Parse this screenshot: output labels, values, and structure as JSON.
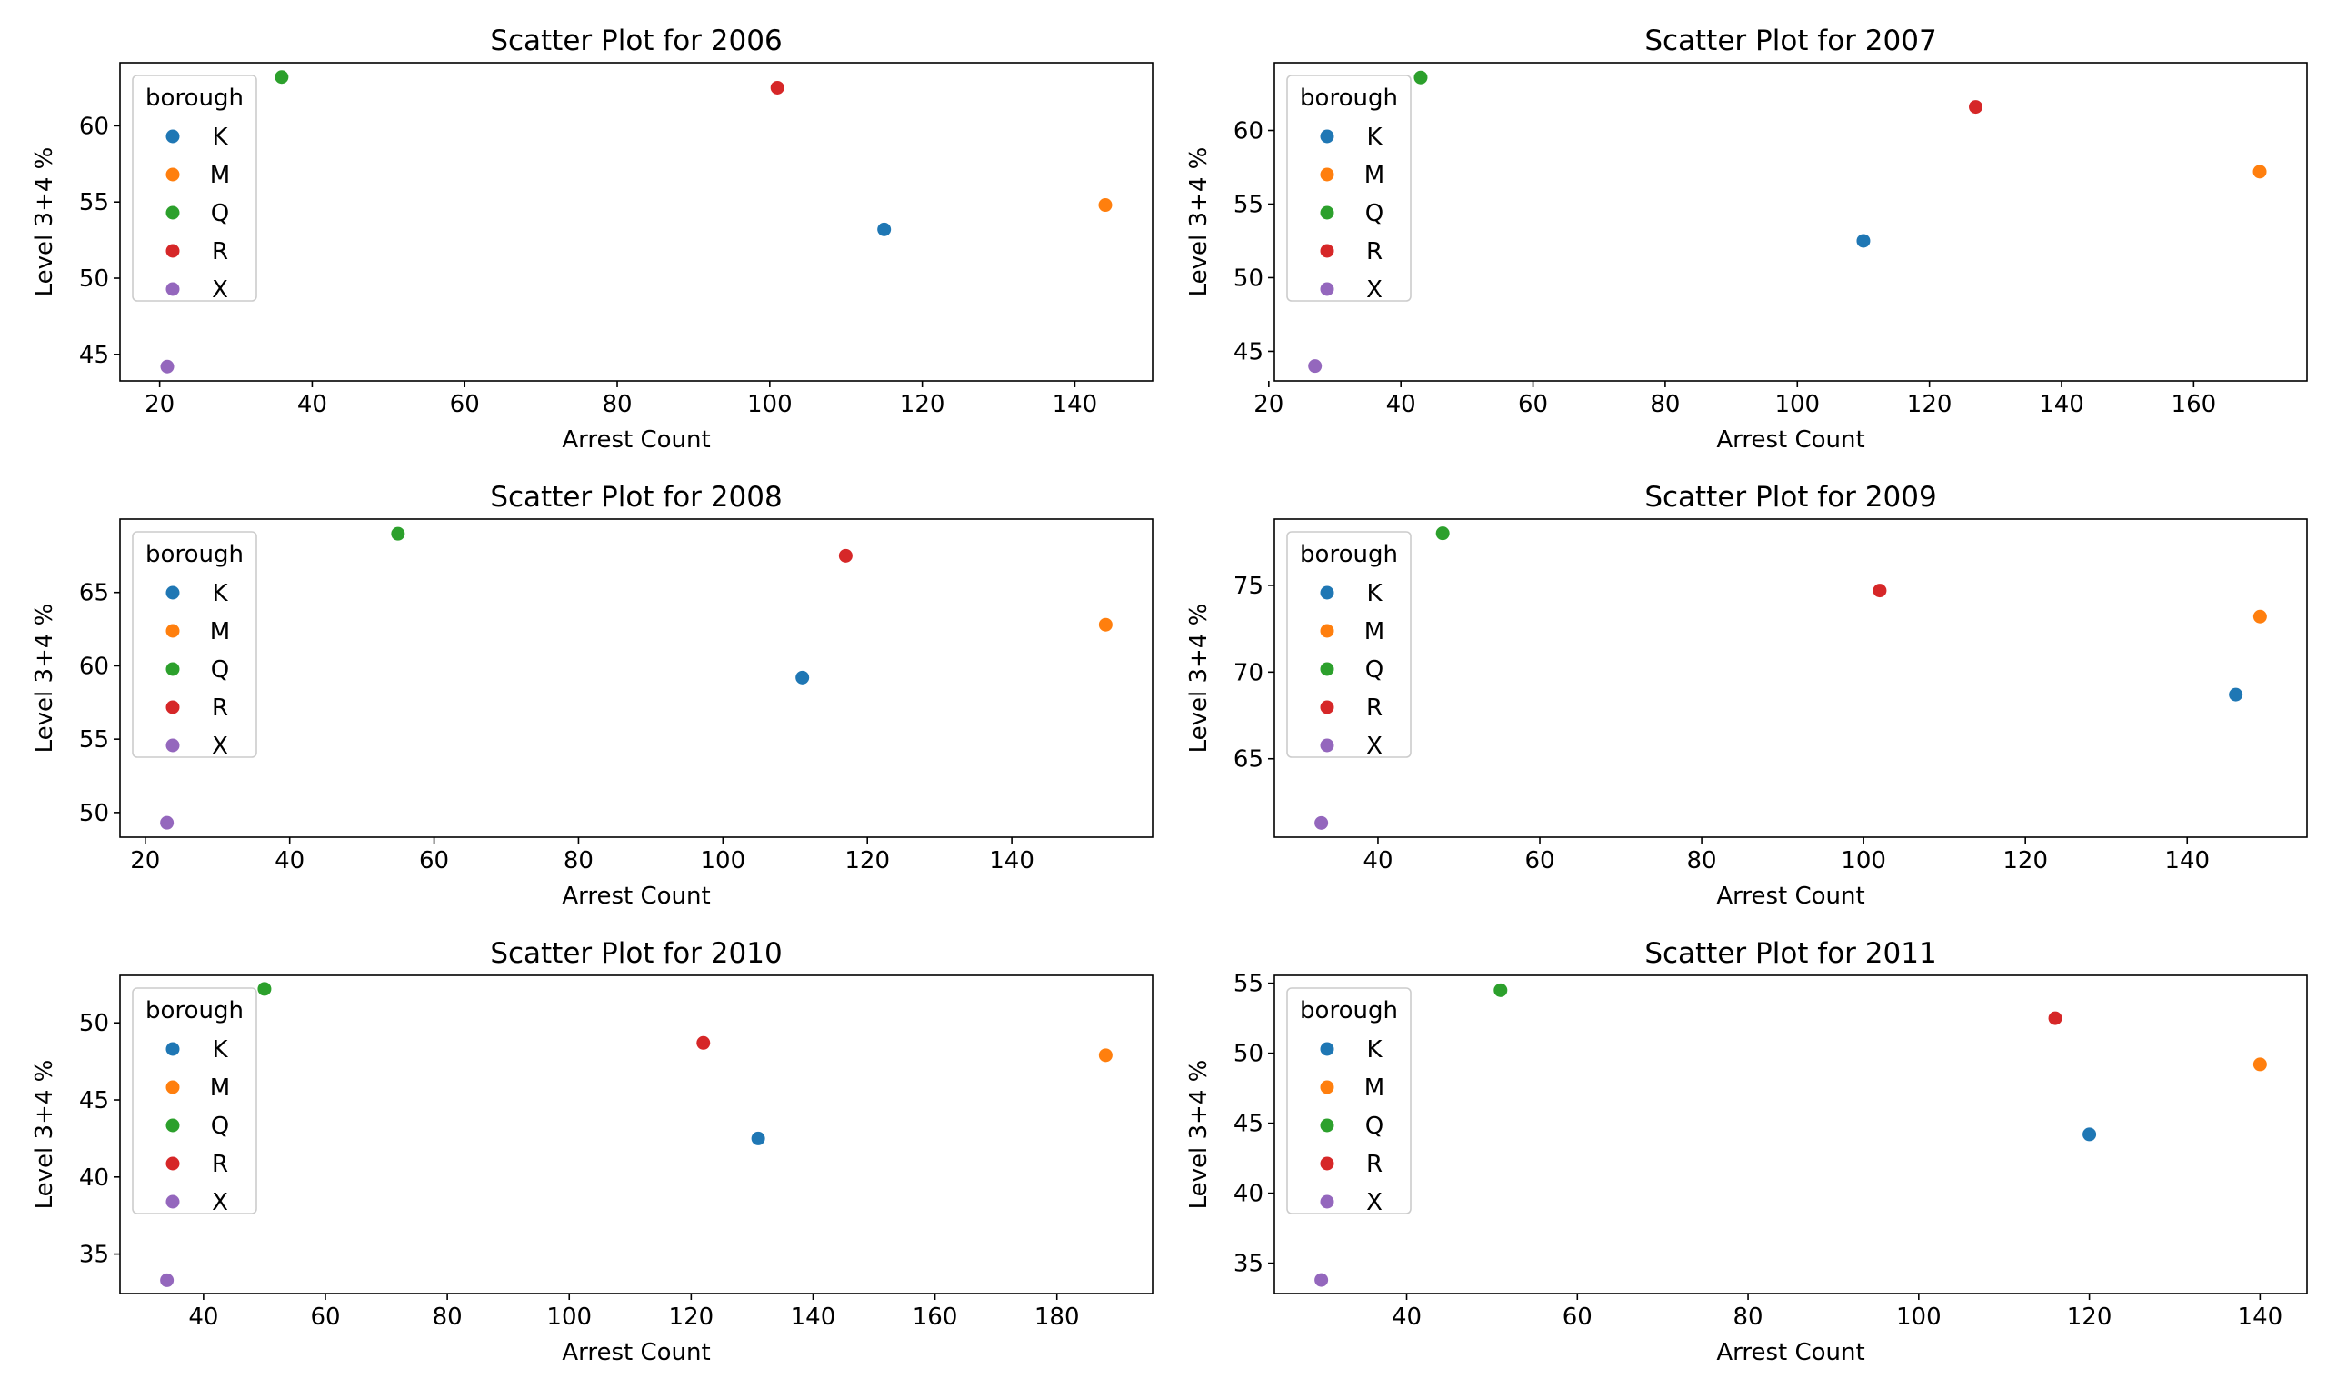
{
  "chart_data": [
    {
      "type": "scatter",
      "title": "Scatter Plot for 2006",
      "xlabel": "Arrest Count",
      "ylabel": "Level 3+4 %",
      "xlim": [
        14.8,
        150.2
      ],
      "ylim": [
        43.26,
        64.14
      ],
      "xticks": [
        20,
        40,
        60,
        80,
        100,
        120,
        140
      ],
      "yticks": [
        45,
        50,
        55,
        60
      ],
      "legend_title": "borough",
      "legend_position": "upper left",
      "series": [
        {
          "name": "K",
          "color": "#1f77b4",
          "x": [
            115
          ],
          "y": [
            53.2
          ]
        },
        {
          "name": "M",
          "color": "#ff7f0e",
          "x": [
            144
          ],
          "y": [
            54.8
          ]
        },
        {
          "name": "Q",
          "color": "#2ca02c",
          "x": [
            36
          ],
          "y": [
            63.2
          ]
        },
        {
          "name": "R",
          "color": "#d62728",
          "x": [
            101
          ],
          "y": [
            62.5
          ]
        },
        {
          "name": "X",
          "color": "#9467bd",
          "x": [
            21
          ],
          "y": [
            44.2
          ]
        }
      ]
    },
    {
      "type": "scatter",
      "title": "Scatter Plot for 2007",
      "xlabel": "Arrest Count",
      "ylabel": "Level 3+4 %",
      "xlim": [
        20.85,
        177.15
      ],
      "ylim": [
        42.99,
        64.6
      ],
      "xticks": [
        20,
        40,
        60,
        80,
        100,
        120,
        140,
        160
      ],
      "yticks": [
        45,
        50,
        55,
        60
      ],
      "legend_title": "borough",
      "legend_position": "upper left",
      "series": [
        {
          "name": "K",
          "color": "#1f77b4",
          "x": [
            110
          ],
          "y": [
            52.5
          ]
        },
        {
          "name": "M",
          "color": "#ff7f0e",
          "x": [
            170
          ],
          "y": [
            57.2
          ]
        },
        {
          "name": "Q",
          "color": "#2ca02c",
          "x": [
            43
          ],
          "y": [
            63.6
          ]
        },
        {
          "name": "R",
          "color": "#d62728",
          "x": [
            127
          ],
          "y": [
            61.6
          ]
        },
        {
          "name": "X",
          "color": "#9467bd",
          "x": [
            27
          ],
          "y": [
            44.0
          ]
        }
      ]
    },
    {
      "type": "scatter",
      "title": "Scatter Plot for 2008",
      "xlabel": "Arrest Count",
      "ylabel": "Level 3+4 %",
      "xlim": [
        16.5,
        159.5
      ],
      "ylim": [
        48.32,
        70.0
      ],
      "xticks": [
        20,
        40,
        60,
        80,
        100,
        120,
        140
      ],
      "yticks": [
        50,
        55,
        60,
        65
      ],
      "legend_title": "borough",
      "legend_position": "upper left",
      "series": [
        {
          "name": "K",
          "color": "#1f77b4",
          "x": [
            111
          ],
          "y": [
            59.2
          ]
        },
        {
          "name": "M",
          "color": "#ff7f0e",
          "x": [
            153
          ],
          "y": [
            62.8
          ]
        },
        {
          "name": "Q",
          "color": "#2ca02c",
          "x": [
            55
          ],
          "y": [
            69.0
          ]
        },
        {
          "name": "R",
          "color": "#d62728",
          "x": [
            117
          ],
          "y": [
            67.5
          ]
        },
        {
          "name": "X",
          "color": "#9467bd",
          "x": [
            23
          ],
          "y": [
            49.3
          ]
        }
      ]
    },
    {
      "type": "scatter",
      "title": "Scatter Plot for 2009",
      "xlabel": "Arrest Count",
      "ylabel": "Level 3+4 %",
      "xlim": [
        27.2,
        154.8
      ],
      "ylim": [
        60.48,
        78.82
      ],
      "xticks": [
        40,
        60,
        80,
        100,
        120,
        140
      ],
      "yticks": [
        65,
        70,
        75
      ],
      "legend_title": "borough",
      "legend_position": "upper left",
      "series": [
        {
          "name": "K",
          "color": "#1f77b4",
          "x": [
            146
          ],
          "y": [
            68.7
          ]
        },
        {
          "name": "M",
          "color": "#ff7f0e",
          "x": [
            149
          ],
          "y": [
            73.2
          ]
        },
        {
          "name": "Q",
          "color": "#2ca02c",
          "x": [
            48
          ],
          "y": [
            78.0
          ]
        },
        {
          "name": "R",
          "color": "#d62728",
          "x": [
            102
          ],
          "y": [
            74.7
          ]
        },
        {
          "name": "X",
          "color": "#9467bd",
          "x": [
            33
          ],
          "y": [
            61.3
          ]
        }
      ]
    },
    {
      "type": "scatter",
      "title": "Scatter Plot for 2010",
      "xlabel": "Arrest Count",
      "ylabel": "Level 3+4 %",
      "xlim": [
        26.3,
        195.7
      ],
      "ylim": [
        32.44,
        53.08
      ],
      "xticks": [
        40,
        60,
        80,
        100,
        120,
        140,
        160,
        180
      ],
      "yticks": [
        35,
        40,
        45,
        50
      ],
      "legend_title": "borough",
      "legend_position": "upper left",
      "series": [
        {
          "name": "K",
          "color": "#1f77b4",
          "x": [
            131
          ],
          "y": [
            42.5
          ]
        },
        {
          "name": "M",
          "color": "#ff7f0e",
          "x": [
            188
          ],
          "y": [
            47.9
          ]
        },
        {
          "name": "Q",
          "color": "#2ca02c",
          "x": [
            50
          ],
          "y": [
            52.2
          ]
        },
        {
          "name": "R",
          "color": "#d62728",
          "x": [
            122
          ],
          "y": [
            48.7
          ]
        },
        {
          "name": "X",
          "color": "#9467bd",
          "x": [
            34
          ],
          "y": [
            33.3
          ]
        }
      ]
    },
    {
      "type": "scatter",
      "title": "Scatter Plot for 2011",
      "xlabel": "Arrest Count",
      "ylabel": "Level 3+4 %",
      "xlim": [
        24.5,
        145.5
      ],
      "ylim": [
        32.83,
        55.56
      ],
      "xticks": [
        40,
        60,
        80,
        100,
        120,
        140
      ],
      "yticks": [
        35,
        40,
        45,
        50,
        55
      ],
      "legend_title": "borough",
      "legend_position": "upper left",
      "series": [
        {
          "name": "K",
          "color": "#1f77b4",
          "x": [
            120
          ],
          "y": [
            44.2
          ]
        },
        {
          "name": "M",
          "color": "#ff7f0e",
          "x": [
            140
          ],
          "y": [
            49.2
          ]
        },
        {
          "name": "Q",
          "color": "#2ca02c",
          "x": [
            51
          ],
          "y": [
            54.5
          ]
        },
        {
          "name": "R",
          "color": "#d62728",
          "x": [
            116
          ],
          "y": [
            52.5
          ]
        },
        {
          "name": "X",
          "color": "#9467bd",
          "x": [
            30
          ],
          "y": [
            33.8
          ]
        }
      ]
    }
  ]
}
